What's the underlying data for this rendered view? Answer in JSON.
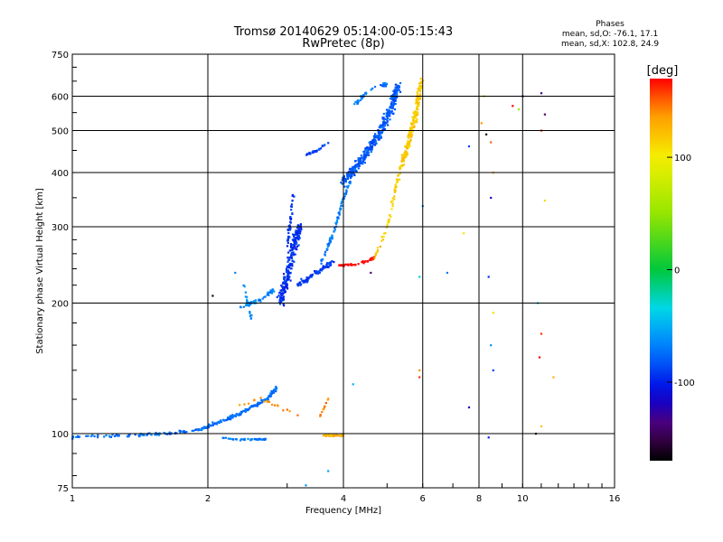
{
  "header": {
    "title": "Tromsø 20140629 05:14:00-05:15:43",
    "subtitle": "RwPretec (8p)"
  },
  "phase_legend": {
    "title": "Phases",
    "line1": "mean, sd,O: -76.1, 17.1",
    "line2": "mean, sd,X: 102.8, 24.9"
  },
  "colorbar": {
    "unit": "[deg]",
    "ticks": [
      "100",
      "0",
      "-100"
    ],
    "tick_values": [
      100,
      0,
      -100
    ],
    "range": [
      -170,
      170
    ]
  },
  "chart_data": {
    "type": "scatter",
    "title": "Tromsø 20140629 05:14:00-05:15:43",
    "subtitle": "RwPretec (8p)",
    "xlabel": "Frequency [MHz]",
    "ylabel": "Stationary phase Virtual Height [km]",
    "xscale": "log",
    "yscale": "log",
    "xlim": [
      1,
      16
    ],
    "ylim": [
      75,
      750
    ],
    "xticks": [
      1,
      2,
      4,
      6,
      8,
      10,
      16
    ],
    "xtick_labels": [
      "1",
      "2",
      "4",
      "6",
      "8",
      "10",
      "16"
    ],
    "yticks": [
      75,
      100,
      200,
      300,
      400,
      500,
      600,
      750
    ],
    "ytick_labels": [
      "75",
      "100",
      "200",
      "300",
      "400",
      "500",
      "600",
      "750"
    ],
    "grid": true,
    "colorbar_label": "[deg]",
    "traces": [
      {
        "x": [
          1.0,
          1.3,
          1.6,
          1.9,
          2.1,
          2.3,
          2.5,
          2.7,
          2.85
        ],
        "y": [
          98,
          99,
          100,
          102,
          106,
          110,
          115,
          120,
          128
        ],
        "phase": -75,
        "spread": 2.5,
        "n": 260
      },
      {
        "x": [
          2.15,
          2.3,
          2.5,
          2.7
        ],
        "y": [
          98,
          97,
          97,
          97
        ],
        "phase": -70,
        "spread": 1.5,
        "n": 40
      },
      {
        "x": [
          2.35,
          2.5,
          2.65,
          2.8
        ],
        "y": [
          195,
          200,
          205,
          215
        ],
        "phase": -65,
        "spread": 3,
        "n": 55
      },
      {
        "x": [
          2.4,
          2.45,
          2.5
        ],
        "y": [
          220,
          200,
          185
        ],
        "phase": -65,
        "spread": 3,
        "n": 18
      },
      {
        "x": [
          2.9,
          3.0,
          3.1,
          3.2
        ],
        "y": [
          200,
          230,
          270,
          300
        ],
        "phase": -95,
        "spread": 9,
        "n": 230
      },
      {
        "x": [
          3.0,
          3.1
        ],
        "y": [
          270,
          360
        ],
        "phase": -95,
        "spread": 3,
        "n": 40
      },
      {
        "x": [
          3.15,
          3.4,
          3.6,
          3.8
        ],
        "y": [
          220,
          230,
          240,
          250
        ],
        "phase": -90,
        "spread": 4,
        "n": 80
      },
      {
        "x": [
          3.55,
          3.8,
          4.0,
          4.2
        ],
        "y": [
          245,
          290,
          350,
          400
        ],
        "phase": -72,
        "spread": 3,
        "n": 80
      },
      {
        "x": [
          3.3,
          3.5,
          3.7
        ],
        "y": [
          440,
          450,
          470
        ],
        "phase": -92,
        "spread": 2,
        "n": 25
      },
      {
        "x": [
          4.0,
          4.4,
          4.8,
          5.1,
          5.3
        ],
        "y": [
          380,
          430,
          490,
          560,
          640
        ],
        "phase": -82,
        "spread": 8,
        "n": 360
      },
      {
        "x": [
          4.25,
          4.4,
          4.7,
          5.0
        ],
        "y": [
          575,
          600,
          630,
          640
        ],
        "phase": -70,
        "spread": 2.5,
        "n": 45
      },
      {
        "x": [
          3.9,
          4.2,
          4.5,
          4.7
        ],
        "y": [
          245,
          245,
          250,
          255
        ],
        "phase": 175,
        "spread": 2,
        "n": 40
      },
      {
        "x": [
          4.7,
          5.0,
          5.2,
          5.4
        ],
        "y": [
          255,
          300,
          360,
          430
        ],
        "phase": 115,
        "spread": 3,
        "n": 60
      },
      {
        "x": [
          5.4,
          5.6,
          5.8,
          5.95
        ],
        "y": [
          420,
          480,
          550,
          650
        ],
        "phase": 118,
        "spread": 6,
        "n": 200
      },
      {
        "x": [
          3.6,
          3.8,
          4.0
        ],
        "y": [
          99,
          99,
          99
        ],
        "phase": 130,
        "spread": 1.5,
        "n": 35
      },
      {
        "x": [
          3.55,
          3.7
        ],
        "y": [
          110,
          120
        ],
        "phase": 145,
        "spread": 2,
        "n": 12
      },
      {
        "x": [
          2.3,
          2.6,
          2.9,
          3.2
        ],
        "y": [
          115,
          120,
          115,
          110
        ],
        "phase": 140,
        "spread": 3,
        "n": 20
      }
    ],
    "scattered_points": [
      {
        "x": 8.2,
        "y": 600,
        "phase": 120
      },
      {
        "x": 8.3,
        "y": 490,
        "phase": -160
      },
      {
        "x": 8.5,
        "y": 470,
        "phase": 150
      },
      {
        "x": 8.6,
        "y": 400,
        "phase": 130
      },
      {
        "x": 8.5,
        "y": 350,
        "phase": -120
      },
      {
        "x": 8.4,
        "y": 230,
        "phase": -95
      },
      {
        "x": 8.6,
        "y": 190,
        "phase": 110
      },
      {
        "x": 8.5,
        "y": 160,
        "phase": -60
      },
      {
        "x": 8.6,
        "y": 140,
        "phase": -90
      },
      {
        "x": 8.4,
        "y": 98,
        "phase": -100
      },
      {
        "x": 7.6,
        "y": 460,
        "phase": -90
      },
      {
        "x": 7.4,
        "y": 290,
        "phase": 105
      },
      {
        "x": 7.6,
        "y": 115,
        "phase": -120
      },
      {
        "x": 8.1,
        "y": 520,
        "phase": 140
      },
      {
        "x": 10.0,
        "y": 600,
        "phase": -110
      },
      {
        "x": 11.0,
        "y": 610,
        "phase": -130
      },
      {
        "x": 11.2,
        "y": 545,
        "phase": -140
      },
      {
        "x": 11.0,
        "y": 500,
        "phase": 160
      },
      {
        "x": 11.2,
        "y": 345,
        "phase": 110
      },
      {
        "x": 10.8,
        "y": 200,
        "phase": -40
      },
      {
        "x": 11.0,
        "y": 170,
        "phase": 160
      },
      {
        "x": 10.9,
        "y": 150,
        "phase": 170
      },
      {
        "x": 11.7,
        "y": 135,
        "phase": 125
      },
      {
        "x": 11.0,
        "y": 104,
        "phase": 120
      },
      {
        "x": 10.7,
        "y": 100,
        "phase": -160
      },
      {
        "x": 6.0,
        "y": 335,
        "phase": -60
      },
      {
        "x": 5.9,
        "y": 230,
        "phase": -40
      },
      {
        "x": 5.9,
        "y": 135,
        "phase": 160
      },
      {
        "x": 5.9,
        "y": 140,
        "phase": 140
      },
      {
        "x": 6.8,
        "y": 235,
        "phase": -70
      },
      {
        "x": 4.6,
        "y": 235,
        "phase": -140
      },
      {
        "x": 4.2,
        "y": 130,
        "phase": -50
      },
      {
        "x": 9.5,
        "y": 570,
        "phase": 170
      },
      {
        "x": 9.8,
        "y": 560,
        "phase": 60
      },
      {
        "x": 2.05,
        "y": 208,
        "phase": -160
      },
      {
        "x": 2.3,
        "y": 235,
        "phase": -65
      },
      {
        "x": 3.7,
        "y": 82,
        "phase": -55
      },
      {
        "x": 3.3,
        "y": 76,
        "phase": -60
      }
    ]
  }
}
